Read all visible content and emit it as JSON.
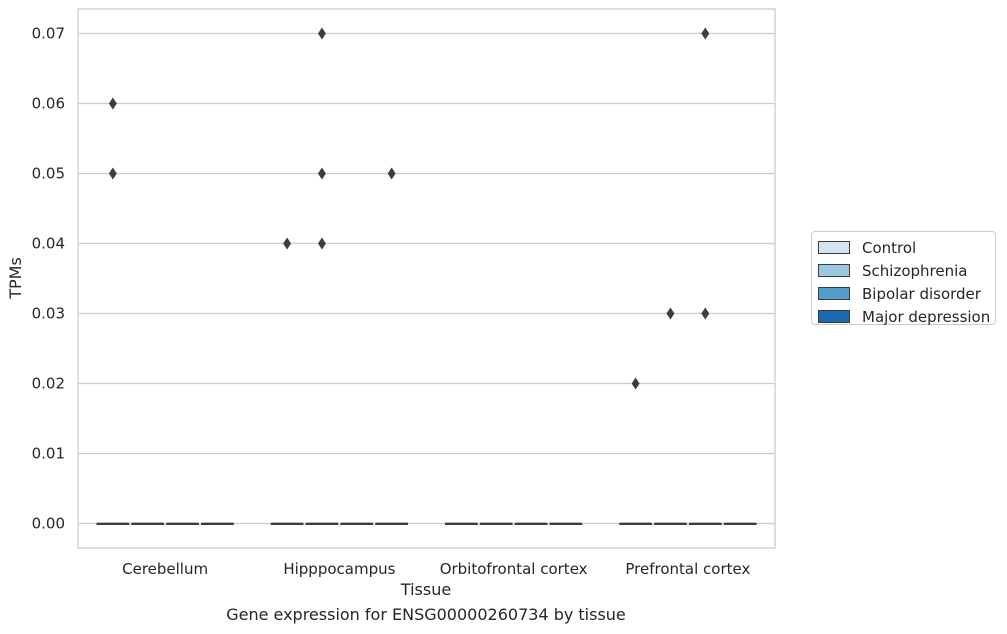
{
  "chart_data": {
    "type": "box",
    "title": "Gene expression for ENSG00000260734 by tissue",
    "xlabel": "Tissue",
    "ylabel": "TPMs",
    "categories": [
      "Cerebellum",
      "Hipppocampus",
      "Orbitofrontal cortex",
      "Prefrontal cortex"
    ],
    "ylim": [
      -0.0035,
      0.0735
    ],
    "yticks": [
      "0.00",
      "0.01",
      "0.02",
      "0.03",
      "0.04",
      "0.05",
      "0.06",
      "0.07"
    ],
    "grid": true,
    "legend_position": "right",
    "series": [
      {
        "name": "Control",
        "color": "#d4e4f2",
        "boxes": [
          {
            "category": "Cerebellum",
            "median": 0.0,
            "q1": 0.0,
            "q3": 0.0,
            "outliers": [
              0.06,
              0.05
            ]
          },
          {
            "category": "Hipppocampus",
            "median": 0.0,
            "q1": 0.0,
            "q3": 0.0,
            "outliers": [
              0.04
            ]
          },
          {
            "category": "Orbitofrontal cortex",
            "median": 0.0,
            "q1": 0.0,
            "q3": 0.0,
            "outliers": []
          },
          {
            "category": "Prefrontal cortex",
            "median": 0.0,
            "q1": 0.0,
            "q3": 0.0,
            "outliers": [
              0.02
            ]
          }
        ]
      },
      {
        "name": "Schizophrenia",
        "color": "#9ac8e0",
        "boxes": [
          {
            "category": "Cerebellum",
            "median": 0.0,
            "q1": 0.0,
            "q3": 0.0,
            "outliers": []
          },
          {
            "category": "Hipppocampus",
            "median": 0.0,
            "q1": 0.0,
            "q3": 0.0,
            "outliers": [
              0.07,
              0.05,
              0.04
            ]
          },
          {
            "category": "Orbitofrontal cortex",
            "median": 0.0,
            "q1": 0.0,
            "q3": 0.0,
            "outliers": []
          },
          {
            "category": "Prefrontal cortex",
            "median": 0.0,
            "q1": 0.0,
            "q3": 0.0,
            "outliers": [
              0.03
            ]
          }
        ]
      },
      {
        "name": "Bipolar disorder",
        "color": "#529dcc",
        "boxes": [
          {
            "category": "Cerebellum",
            "median": 0.0,
            "q1": 0.0,
            "q3": 0.0,
            "outliers": []
          },
          {
            "category": "Hipppocampus",
            "median": 0.0,
            "q1": 0.0,
            "q3": 0.0,
            "outliers": []
          },
          {
            "category": "Orbitofrontal cortex",
            "median": 0.0,
            "q1": 0.0,
            "q3": 0.0,
            "outliers": []
          },
          {
            "category": "Prefrontal cortex",
            "median": 0.0,
            "q1": 0.0,
            "q3": 0.0,
            "outliers": [
              0.07,
              0.03
            ]
          }
        ]
      },
      {
        "name": "Major depression",
        "color": "#1b69af",
        "boxes": [
          {
            "category": "Cerebellum",
            "median": 0.0,
            "q1": 0.0,
            "q3": 0.0,
            "outliers": []
          },
          {
            "category": "Hipppocampus",
            "median": 0.0,
            "q1": 0.0,
            "q3": 0.0,
            "outliers": [
              0.05
            ]
          },
          {
            "category": "Orbitofrontal cortex",
            "median": 0.0,
            "q1": 0.0,
            "q3": 0.0,
            "outliers": []
          },
          {
            "category": "Prefrontal cortex",
            "median": 0.0,
            "q1": 0.0,
            "q3": 0.0,
            "outliers": []
          }
        ]
      }
    ]
  }
}
